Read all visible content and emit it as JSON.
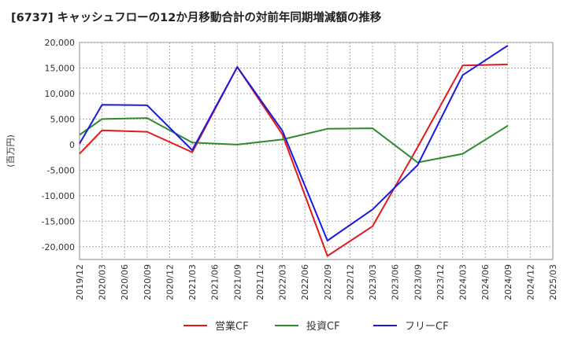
{
  "chart_data": {
    "type": "line",
    "title": "[6737]  キャッシュフローの12か月移動合計の対前年同期増減額の推移",
    "ylabel": "(百万円)",
    "xlabel": "",
    "ylim": [
      -22500,
      20000
    ],
    "y_ticks": [
      20000,
      15000,
      10000,
      5000,
      0,
      -5000,
      -10000,
      -15000,
      -20000
    ],
    "y_tick_labels": [
      "20,000",
      "15,000",
      "10,000",
      "5,000",
      "0",
      "-5,000",
      "-10,000",
      "-15,000",
      "-20,000"
    ],
    "categories": [
      "2019/12",
      "2020/03",
      "2020/06",
      "2020/09",
      "2020/12",
      "2021/03",
      "2021/06",
      "2021/09",
      "2021/12",
      "2022/03",
      "2022/06",
      "2022/09",
      "2022/12",
      "2023/03",
      "2023/06",
      "2023/09",
      "2023/12",
      "2024/03",
      "2024/06",
      "2024/09",
      "2024/12",
      "2025/03"
    ],
    "grid": true,
    "legend_position": "bottom",
    "series": [
      {
        "name": "営業CF",
        "color": "#e31a1c",
        "values": [
          -1800,
          2800,
          null,
          2500,
          null,
          -1500,
          null,
          15200,
          null,
          2000,
          null,
          -21800,
          null,
          -16000,
          null,
          -500,
          null,
          15500,
          null,
          15700,
          null,
          null
        ]
      },
      {
        "name": "投資CF",
        "color": "#2e8b2e",
        "values": [
          1900,
          5000,
          null,
          5200,
          null,
          400,
          null,
          0,
          null,
          1000,
          null,
          3100,
          null,
          3200,
          null,
          -3500,
          null,
          -1800,
          null,
          3700,
          null,
          null
        ]
      },
      {
        "name": "フリーCF",
        "color": "#1a1adb",
        "values": [
          200,
          7800,
          null,
          7700,
          null,
          -1100,
          null,
          15200,
          null,
          2700,
          null,
          -18800,
          null,
          -12700,
          null,
          -4000,
          null,
          13600,
          null,
          19400,
          null,
          null
        ]
      }
    ]
  }
}
